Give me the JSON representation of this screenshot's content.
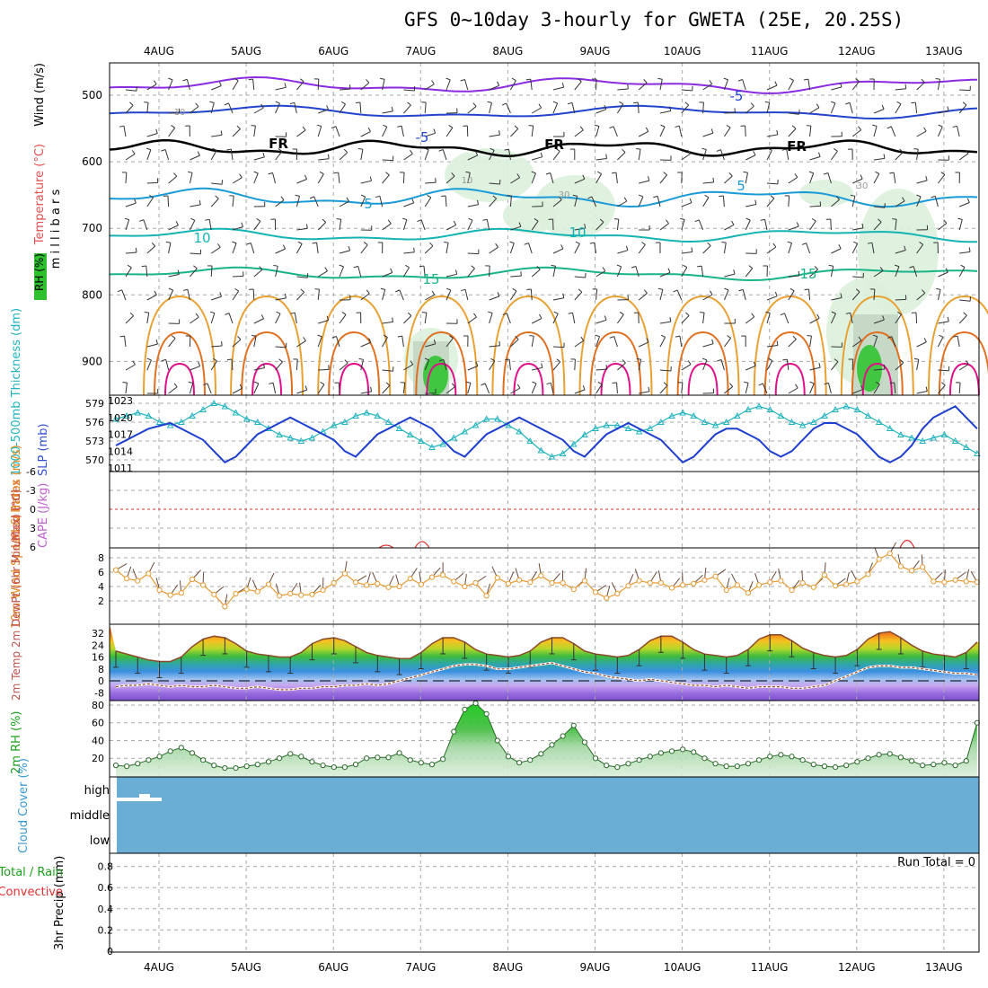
{
  "title": "GFS 0~10day 3-hourly for GWETA (25E, 20.25S)",
  "dates": [
    "4AUG",
    "5AUG",
    "6AUG",
    "7AUG",
    "8AUG",
    "9AUG",
    "10AUG",
    "11AUG",
    "12AUG",
    "13AUG"
  ],
  "run_total": "Run Total = 0",
  "colors": {
    "grid": "#aaaaaa",
    "sky": "#6aaed6",
    "slp": "#1f3fd0",
    "thick": "#22b3c0",
    "wind": "#e69a33",
    "rh": "#2a9d2a",
    "temp": "#8a4a2a",
    "dew": "#9a4a2a",
    "lifted": "#e03030",
    "cape": "#c060d0"
  },
  "chart_data": [
    {
      "type": "contour",
      "panel": "upper-air",
      "ylabel_parts": [
        "Wind (m/s)",
        "Temperature (°C)",
        "RH (%)"
      ],
      "ylabel_center": "m i l l i b a r s",
      "yticks": [
        500,
        600,
        700,
        800,
        900
      ],
      "contour_labels": [
        "-5",
        "-5",
        "FR",
        "FR",
        "FR",
        "5",
        "5",
        "10",
        "10",
        "15",
        "15",
        "10",
        "10",
        "30",
        "30"
      ]
    },
    {
      "type": "line",
      "panel": "slp-thickness",
      "ylabel_left": "1000-500mb Thickness (dm)",
      "ylabel_right": "SLP (mb)",
      "left_ticks": [
        579,
        576,
        573,
        570
      ],
      "right_ticks": [
        1023,
        1020,
        1017,
        1014,
        1011
      ],
      "x_step_hours": 3,
      "series": [
        {
          "name": "SLP (mb)",
          "values": [
            1015,
            1016,
            1017,
            1018,
            1018.5,
            1019,
            1018,
            1017,
            1016,
            1014,
            1012,
            1013,
            1015,
            1017,
            1018,
            1019,
            1020,
            1019,
            1018,
            1017,
            1016,
            1014,
            1013,
            1015,
            1017,
            1018,
            1019,
            1020,
            1019,
            1018,
            1016,
            1014,
            1013,
            1015,
            1017,
            1018,
            1019,
            1020,
            1019,
            1018,
            1017,
            1016,
            1014,
            1013,
            1015,
            1017,
            1018,
            1019,
            1018,
            1017,
            1016,
            1014,
            1012,
            1013,
            1015,
            1017,
            1018,
            1018,
            1017,
            1016,
            1014,
            1013,
            1014,
            1016,
            1018,
            1019,
            1019,
            1018,
            1017,
            1015,
            1013,
            1012,
            1013,
            1015,
            1018,
            1020,
            1021,
            1022,
            1020,
            1018,
            1016,
            1017,
            1018,
            1019,
            1020
          ]
        },
        {
          "name": "1000-500mb Thickness (dm)",
          "values": [
            576.5,
            577,
            577.5,
            577,
            576,
            575.5,
            576,
            577,
            578,
            579,
            578.5,
            577.5,
            576.5,
            576,
            575,
            574,
            573.5,
            573,
            573.5,
            574.5,
            575.5,
            576,
            577,
            577.5,
            577,
            576,
            575,
            574,
            573,
            572,
            572.5,
            573.5,
            574.5,
            575.5,
            576.5,
            576.5,
            575.5,
            574.5,
            573,
            571.5,
            570.5,
            571,
            572.5,
            574,
            575,
            575.5,
            575.5,
            575,
            574.5,
            575,
            576,
            577,
            577.5,
            577,
            576,
            575.5,
            576,
            577,
            578,
            578.5,
            578,
            577,
            576,
            575.5,
            576,
            577,
            578,
            578.5,
            578,
            577,
            576,
            575,
            574,
            573.5,
            573,
            573.5,
            574,
            573,
            572,
            571,
            570.5,
            571,
            572.5,
            574,
            575
          ]
        }
      ]
    },
    {
      "type": "line",
      "panel": "lifted-cape",
      "ylabel_left": "Lifted Index",
      "ylabel_right": "CAPE (J/kg)",
      "left_ticks": [
        "-6",
        "-3",
        "0",
        "3",
        "6"
      ],
      "ylim": [
        -6,
        6
      ]
    },
    {
      "type": "line",
      "panel": "wind",
      "ylabel": "10m Wind Speed & Barbs (m/s)",
      "yticks": [
        8,
        6,
        4,
        2
      ],
      "ylim": [
        0,
        9
      ],
      "x_step_hours": 3,
      "series": [
        {
          "name": "Speed",
          "values": [
            6.3,
            5.1,
            4.8,
            5.8,
            3.5,
            2.8,
            3.1,
            5.0,
            4.2,
            2.9,
            1.2,
            3.0,
            3.6,
            3.3,
            4.3,
            2.7,
            3.0,
            2.8,
            2.9,
            3.5,
            4.5,
            5.8,
            4.6,
            4.2,
            4.4,
            3.9,
            4.0,
            5.1,
            4.3,
            5.3,
            5.6,
            4.7,
            4.0,
            4.5,
            2.7,
            5.2,
            4.4,
            4.9,
            4.6,
            5.5,
            4.5,
            4.5,
            3.6,
            4.8,
            3.2,
            2.4,
            3.0,
            4.1,
            4.8,
            4.5,
            4.5,
            3.8,
            4.2,
            4.4,
            4.9,
            5.4,
            3.5,
            4.2,
            3.1,
            4.2,
            4.6,
            4.8,
            3.5,
            4.5,
            3.9,
            5.6,
            4.1,
            4.3,
            4.7,
            5.7,
            7.8,
            8.6,
            6.8,
            6.2,
            6.7,
            4.7,
            4.6,
            4.9,
            4.7,
            4.6,
            4.8,
            4.5,
            4.4,
            4.6,
            4.7
          ]
        }
      ]
    },
    {
      "type": "area",
      "panel": "temperature",
      "ylabel": "2m Temp 2m DewPt (6hr Min/Max) (°C)",
      "yticks": [
        32,
        24,
        16,
        8,
        0,
        -8
      ],
      "ylim": [
        -12,
        36
      ],
      "x_step_hours": 3,
      "series": [
        {
          "name": "2m Temp",
          "values": [
            20,
            18,
            16,
            14,
            13,
            13,
            16,
            23,
            28,
            30,
            29,
            25,
            20,
            18,
            17,
            16,
            16,
            19,
            25,
            28,
            29,
            27,
            23,
            19,
            17,
            16,
            15,
            15,
            19,
            25,
            29,
            29,
            26,
            21,
            18,
            17,
            16,
            17,
            20,
            26,
            29,
            29,
            25,
            20,
            18,
            17,
            16,
            17,
            21,
            27,
            30,
            30,
            26,
            21,
            18,
            17,
            16,
            17,
            21,
            28,
            31,
            31,
            27,
            22,
            19,
            17,
            16,
            17,
            21,
            28,
            32,
            33,
            29,
            24,
            20,
            18,
            17,
            16,
            19,
            26,
            29,
            30,
            27,
            22,
            19,
            17,
            16,
            16
          ]
        },
        {
          "name": "2m DewPt",
          "values": [
            -4,
            -3,
            -3,
            -2,
            -3,
            -4,
            -3,
            -4,
            -4,
            -3,
            -4,
            -5,
            -5,
            -4,
            -5,
            -6,
            -6,
            -5,
            -5,
            -4,
            -4,
            -3,
            -3,
            -2,
            -3,
            -2,
            0,
            2,
            4,
            6,
            8,
            10,
            11,
            11,
            10,
            8,
            8,
            9,
            10,
            11,
            12,
            10,
            8,
            6,
            5,
            3,
            2,
            1,
            0,
            1,
            0,
            -1,
            -2,
            -3,
            -3,
            -4,
            -3,
            -4,
            -5,
            -4,
            -4,
            -4,
            -5,
            -5,
            -4,
            -3,
            0,
            3,
            6,
            9,
            10,
            10,
            9,
            9,
            8,
            7,
            6,
            5,
            5,
            4,
            4,
            4,
            4,
            4
          ]
        }
      ]
    },
    {
      "type": "area",
      "panel": "rh",
      "ylabel": "2m RH (%)",
      "yticks": [
        80,
        60,
        40,
        20
      ],
      "ylim": [
        0,
        90
      ],
      "x_step_hours": 3,
      "series": [
        {
          "name": "2m RH",
          "values": [
            12,
            11,
            14,
            18,
            22,
            28,
            32,
            26,
            18,
            12,
            9,
            9,
            11,
            13,
            16,
            20,
            25,
            22,
            16,
            12,
            10,
            10,
            13,
            20,
            21,
            21,
            26,
            18,
            15,
            13,
            19,
            50,
            75,
            82,
            70,
            40,
            22,
            15,
            18,
            25,
            35,
            45,
            57,
            38,
            20,
            12,
            10,
            14,
            18,
            22,
            26,
            28,
            30,
            27,
            20,
            14,
            11,
            11,
            14,
            18,
            22,
            24,
            22,
            18,
            13,
            11,
            10,
            12,
            16,
            20,
            24,
            25,
            21,
            17,
            12,
            13,
            15,
            12,
            17,
            60,
            72,
            73,
            76,
            60,
            35,
            22,
            20,
            25,
            32,
            42,
            50,
            45
          ]
        }
      ]
    },
    {
      "type": "area",
      "panel": "cloud",
      "ylabel": "Cloud Cover (%)",
      "levels": [
        "high",
        "middle",
        "low"
      ]
    },
    {
      "type": "bar",
      "panel": "precip",
      "ylabel": "3hr Precip (mm)",
      "ylabel_left1": "Total / Rain",
      "ylabel_left2": "Convective",
      "yticks": [
        "0.8",
        "0.6",
        "0.4",
        "0.2",
        "0"
      ],
      "ylim": [
        0,
        0.9
      ],
      "values": []
    }
  ]
}
